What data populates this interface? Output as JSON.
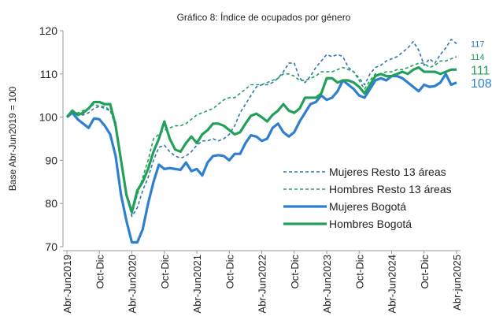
{
  "chart_data": {
    "type": "line",
    "title": "Gráfico 8: Índice de ocupados por género",
    "y_label": "Base Abr-Jun2019 = 100",
    "categories": [
      "Abr-Jun2019",
      null,
      null,
      null,
      null,
      null,
      "Oct-Dic",
      null,
      null,
      null,
      null,
      null,
      "Abr-Jun2020",
      null,
      null,
      null,
      null,
      null,
      "Oct-Dic",
      null,
      null,
      null,
      null,
      null,
      "Abr-Jun2021",
      null,
      null,
      null,
      null,
      null,
      "Oct-Dic",
      null,
      null,
      null,
      null,
      null,
      "Abr-Jun2022",
      null,
      null,
      null,
      null,
      null,
      "Oct-Dic",
      null,
      null,
      null,
      null,
      null,
      "Abr-Jun2023",
      null,
      null,
      null,
      null,
      null,
      "Oct-Dic",
      null,
      null,
      null,
      null,
      null,
      "Abr-Jun2024",
      null,
      null,
      null,
      null,
      null,
      "Oct-Dic",
      null,
      null,
      null,
      null,
      null,
      "Abr-jun2025"
    ],
    "ylim": [
      70,
      120
    ],
    "yticks": [
      70,
      80,
      90,
      100,
      110,
      120
    ],
    "legend": "lower right",
    "series": [
      {
        "name": "Mujeres Resto 13 áreas",
        "color": "#2e75b6",
        "dashed": true,
        "values": [
          100,
          101,
          100.5,
          100.5,
          101,
          102,
          102.5,
          102,
          101.5,
          99,
          90,
          82,
          77,
          79,
          83,
          86,
          90,
          93,
          93.5,
          92,
          91,
          90.5,
          91,
          92,
          93.5,
          94.5,
          94.5,
          95,
          94.5,
          95,
          96,
          98,
          101,
          103,
          105,
          107,
          107.5,
          107.5,
          108,
          109,
          110.5,
          112.5,
          112.5,
          109,
          108,
          109.5,
          111.5,
          113,
          114.5,
          114,
          114.5,
          114,
          111.5,
          110.5,
          109,
          107.5,
          110,
          111.5,
          112,
          113,
          113.5,
          114,
          115,
          116,
          117.5,
          115.5,
          112,
          113.5,
          112.5,
          114.5,
          116,
          118,
          117
        ]
      },
      {
        "name": "Hombres Resto 13 áreas",
        "color": "#22a05a",
        "dashed": true,
        "values": [
          100,
          101,
          101,
          101.5,
          102,
          103,
          102.5,
          102.5,
          101.5,
          98,
          90,
          82,
          77.5,
          82,
          86,
          90,
          95,
          96,
          97,
          97.5,
          98,
          98,
          98.5,
          99.5,
          100.5,
          101,
          101.5,
          102,
          103,
          104,
          104.5,
          104.5,
          105.5,
          106.5,
          107.5,
          107.5,
          107.5,
          108,
          108.5,
          109,
          110,
          110,
          109.5,
          108.5,
          108.5,
          109,
          109.5,
          110.5,
          110.5,
          110.5,
          111,
          111.5,
          111,
          110.5,
          108.5,
          106.5,
          108.5,
          110,
          110,
          110.5,
          110.5,
          111,
          111,
          111.5,
          112,
          112.5,
          112.5,
          111.5,
          112,
          113,
          113,
          113.5,
          114
        ]
      },
      {
        "name": "Mujeres Bogotá",
        "color": "#2e7fd0",
        "dashed": false,
        "values": [
          100,
          101,
          99.5,
          98.5,
          97.5,
          99.7,
          99.5,
          98,
          96,
          91,
          82,
          76,
          71,
          71,
          74,
          80,
          85,
          89,
          88,
          88.2,
          88,
          87.8,
          89.5,
          87.5,
          88,
          86.5,
          89.5,
          91,
          91.2,
          91,
          90,
          91.5,
          91.5,
          94,
          95.8,
          95.5,
          94.5,
          95,
          97.5,
          98.5,
          96.5,
          95.5,
          96.5,
          99,
          101,
          103,
          103.5,
          105,
          104,
          104.5,
          106,
          108.5,
          107.5,
          106.5,
          105,
          104.5,
          106.5,
          108.5,
          109,
          108.5,
          109.5,
          109.5,
          109,
          108,
          107,
          106,
          107.5,
          107,
          107.2,
          108,
          110,
          107.5,
          108
        ]
      },
      {
        "name": "Hombres Bogotá",
        "color": "#22a05a",
        "dashed": false,
        "values": [
          100,
          101.5,
          100.5,
          101,
          102,
          103.5,
          103.5,
          103,
          103,
          98,
          90,
          82,
          78,
          83,
          85,
          88,
          92,
          95,
          99,
          95,
          92.5,
          92,
          94,
          95.5,
          94,
          96,
          97,
          98.5,
          98.5,
          98,
          97,
          96,
          96.5,
          98.5,
          100.3,
          100.8,
          100,
          99,
          100.5,
          101.5,
          103,
          101.5,
          101,
          102,
          104.5,
          104.5,
          104.5,
          105.5,
          109,
          109,
          108,
          108.5,
          108.5,
          108,
          107,
          105.5,
          107.5,
          109.5,
          110,
          109.5,
          109.5,
          110,
          110.5,
          110,
          111,
          111.5,
          110.5,
          110.5,
          110.5,
          110,
          110.5,
          111,
          111
        ]
      }
    ]
  }
}
